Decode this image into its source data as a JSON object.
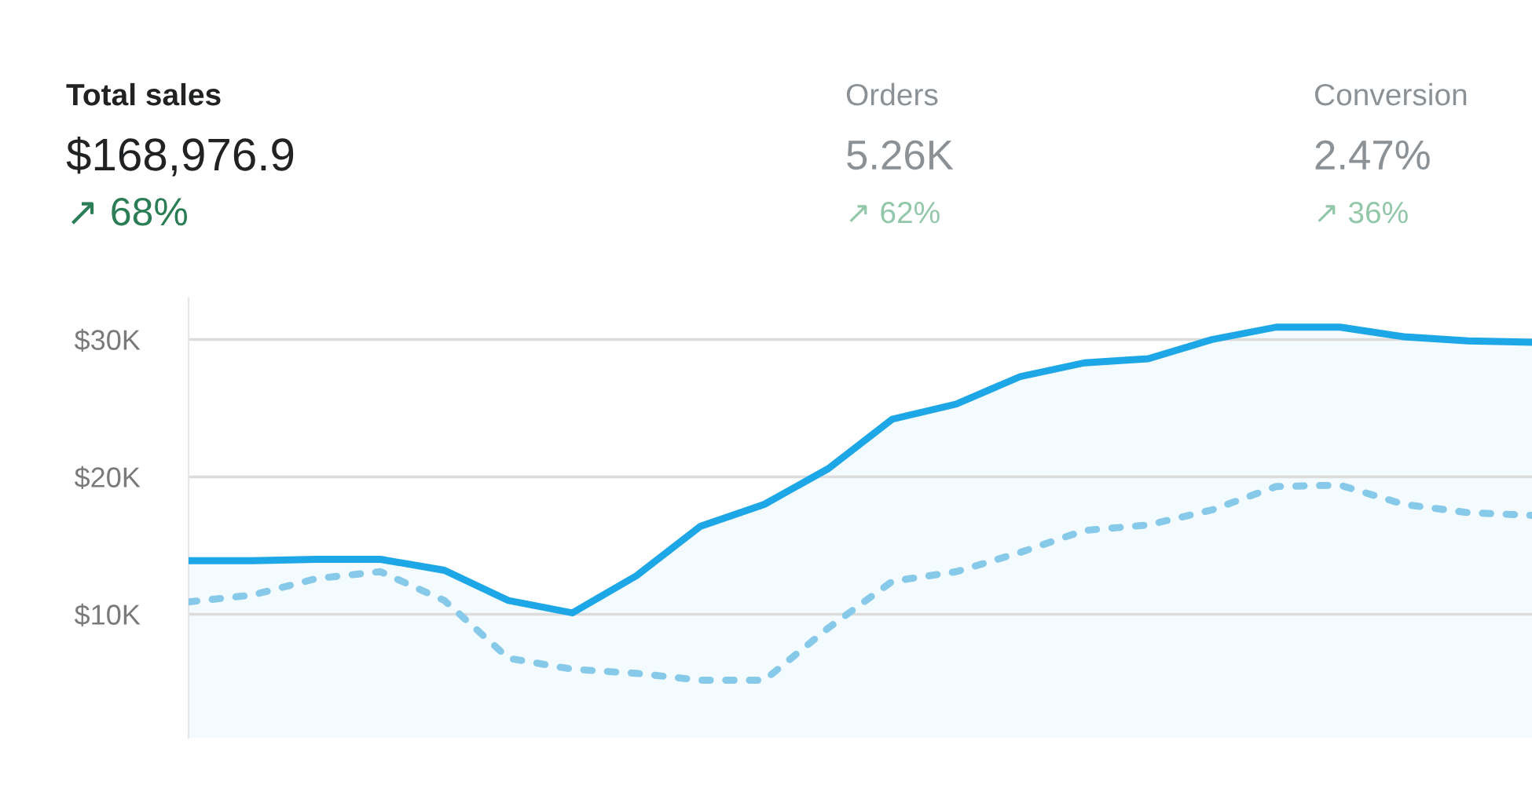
{
  "chart_data": {
    "type": "line",
    "categories": [
      null,
      null,
      null,
      null,
      null,
      null,
      null,
      null,
      null,
      null,
      null,
      null,
      null,
      null,
      null,
      null,
      null,
      null,
      null,
      null,
      null,
      null
    ],
    "series": [
      {
        "type": "area",
        "color": "#1ea7e6",
        "line_style": "solid",
        "values": [
          13.9,
          13.9,
          14.0,
          14.0,
          13.2,
          11.0,
          10.1,
          12.8,
          16.4,
          18.0,
          20.6,
          24.2,
          25.3,
          27.3,
          28.3,
          28.6,
          30.0,
          30.9,
          30.9,
          30.2,
          29.9,
          29.8
        ]
      },
      {
        "type": "line",
        "color": "#86c9e8",
        "line_style": "dotted",
        "values": [
          10.9,
          11.4,
          12.6,
          13.1,
          11.0,
          6.8,
          6.0,
          5.7,
          5.2,
          5.2,
          9.0,
          12.4,
          13.1,
          14.5,
          16.1,
          16.5,
          17.6,
          19.3,
          19.4,
          18.0,
          17.4,
          17.2
        ]
      }
    ],
    "ylim": [
      1,
      33
    ],
    "yticks": [
      {
        "value": 10,
        "label": "$10K"
      },
      {
        "value": 20,
        "label": "$20K"
      },
      {
        "value": 30,
        "label": "$30K"
      }
    ],
    "grid": "y",
    "tick_labels": "y",
    "marker": "none",
    "annotations": [
      "Total sales",
      "$168,976.9",
      "↗ 68%",
      "Orders",
      "5.26K",
      "↗ 62%",
      "Conversion",
      "2.47%",
      "↗ 36%"
    ]
  }
}
